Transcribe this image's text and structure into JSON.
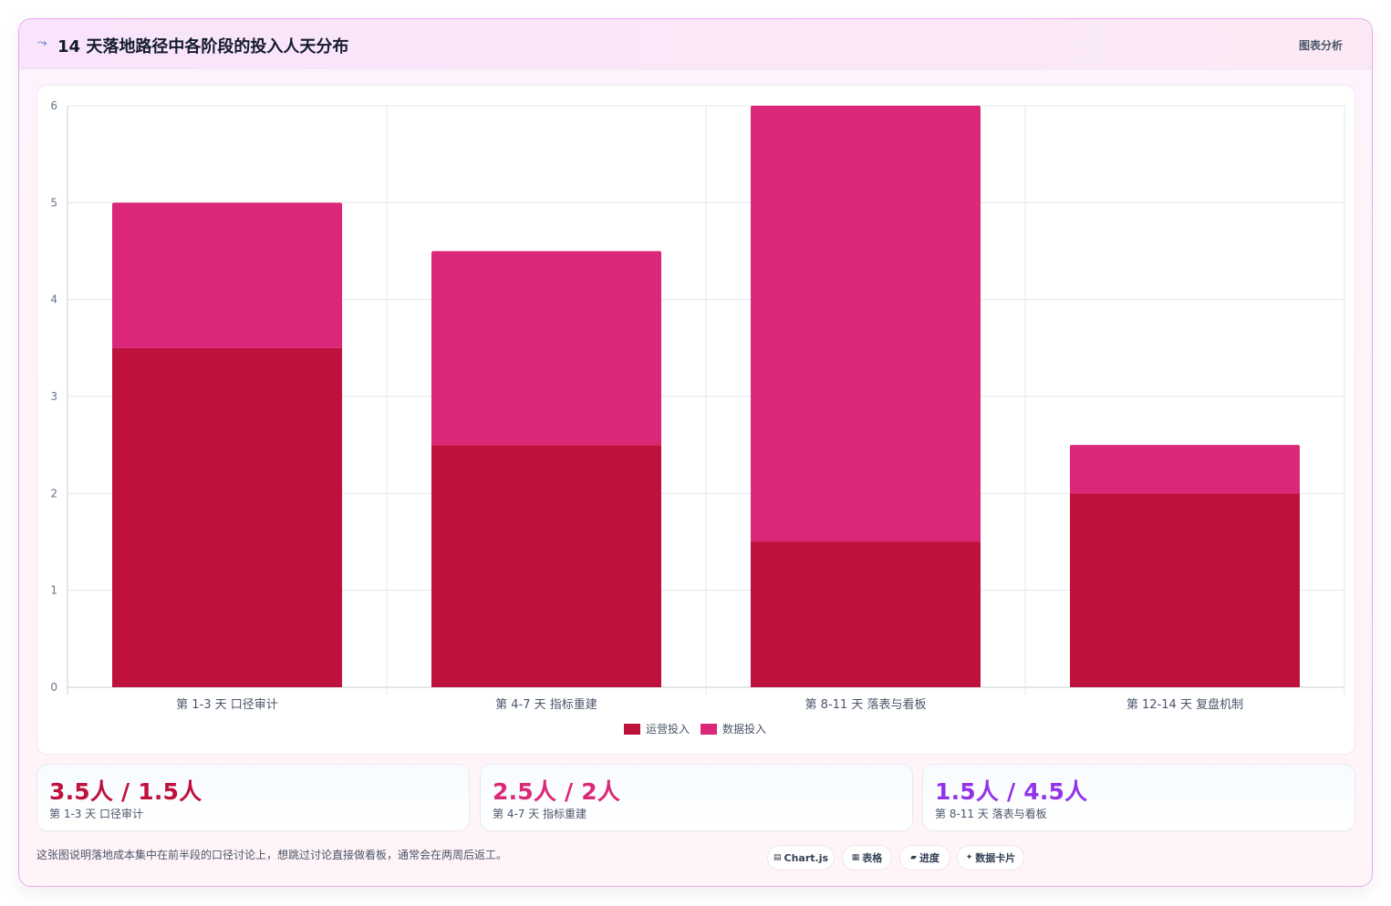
{
  "header": {
    "icon": "trend-icon",
    "title": "14 天落地路径中各阶段的投入人天分布",
    "tag": "图表分析"
  },
  "chart_data": {
    "type": "bar",
    "stacked": true,
    "categories": [
      "第 1-3 天 口径审计",
      "第 4-7 天 指标重建",
      "第 8-11 天 落表与看板",
      "第 12-14 天 复盘机制"
    ],
    "series": [
      {
        "name": "运营投入",
        "values": [
          3.5,
          2.5,
          1.5,
          2
        ],
        "color": "#be123c"
      },
      {
        "name": "数据投入",
        "values": [
          1.5,
          2,
          4.5,
          0.5
        ],
        "color": "#db2777"
      }
    ],
    "ylim": [
      0,
      6
    ],
    "yticks": [
      0,
      1,
      2,
      3,
      4,
      5,
      6
    ],
    "grid": true,
    "legend": "bottom"
  },
  "stats": [
    {
      "value": "3.5人 / 1.5人",
      "label": "第 1-3 天 口径审计",
      "color": "#be123c"
    },
    {
      "value": "2.5人 / 2人",
      "label": "第 4-7 天 指标重建",
      "color": "#db2777"
    },
    {
      "value": "1.5人 / 4.5人",
      "label": "第 8-11 天 落表与看板",
      "color": "#9333ea"
    }
  ],
  "footnote": "这张图说明落地成本集中在前半段的口径讨论上，想跳过讨论直接做看板，通常会在两周后返工。",
  "chips": [
    {
      "icon": "chart-icon",
      "glyph": "▤",
      "label": "Chart.js"
    },
    {
      "icon": "table-icon",
      "glyph": "▦",
      "label": "表格"
    },
    {
      "icon": "progress-icon",
      "glyph": "▰",
      "label": "进度"
    },
    {
      "icon": "card-icon",
      "glyph": "✦",
      "label": "数据卡片"
    }
  ]
}
